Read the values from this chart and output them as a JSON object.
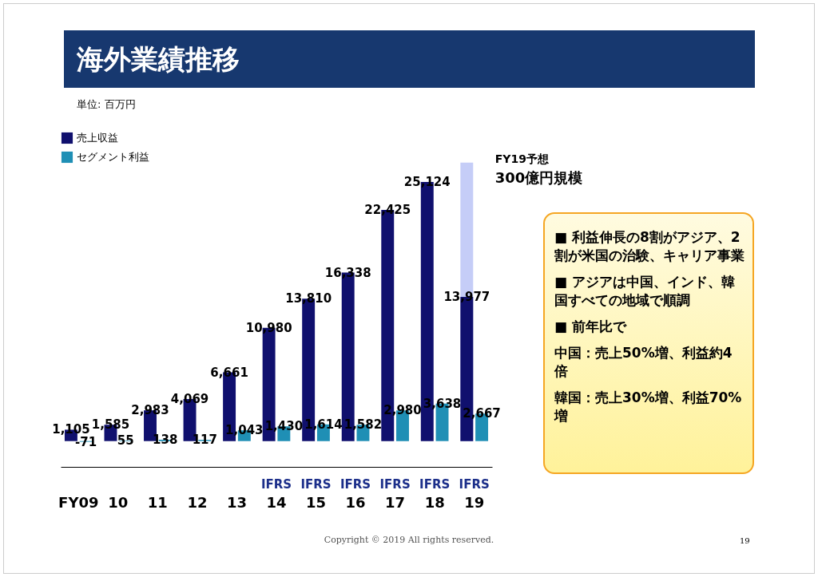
{
  "chart_data": {
    "type": "bar",
    "title": "海外業績推移",
    "subtitle": "単位: 百万円",
    "categories": [
      "FY09",
      "10",
      "11",
      "12",
      "13",
      "14",
      "15",
      "16",
      "17",
      "18",
      "19"
    ],
    "series": [
      {
        "color": "#c5cdf7",
        "values": [
          null,
          null,
          null,
          null,
          null,
          null,
          null,
          null,
          null,
          null,
          27000
        ],
        "value_labels": [
          null,
          null,
          null,
          null,
          null,
          null,
          null,
          null,
          null,
          null,
          null
        ]
      },
      {
        "name": "売上収益",
        "color": "#10106e",
        "values": [
          1105,
          1585,
          2983,
          4069,
          6661,
          10980,
          13810,
          16338,
          22425,
          25124,
          13977
        ],
        "value_labels": [
          "1,105",
          "1,585",
          "2,983",
          "4,069",
          "6,661",
          "10,980",
          "13,810",
          "16,338",
          "22,425",
          "25,124",
          "13,977"
        ]
      },
      {
        "name": "セグメント利益",
        "color": "#1f8fb5",
        "values": [
          -71,
          55,
          138,
          117,
          1043,
          1430,
          1614,
          1582,
          2980,
          3638,
          2667
        ],
        "value_labels": [
          "-71",
          "55",
          "138",
          "117",
          "1,043",
          "1,430",
          "1,614",
          "1,582",
          "2,980",
          "3,638",
          "2,667"
        ]
      }
    ],
    "ylim": [
      -2500,
      30000
    ],
    "tick_labels": "x",
    "legend": "top left",
    "grid": false,
    "annotations": [
      "IFRS",
      "IFRS",
      "IFRS",
      "IFRS",
      "IFRS",
      "IFRS",
      {
        "text": "FY19予想",
        "x": "19",
        "y": 27000
      },
      {
        "text": "300億円規模",
        "x": "19",
        "y": 27000
      },
      "■ 利益伸長の8割がアジア、2割が米国の治験、キャリア事業",
      "■ アジアは中国、インド、韓国すべての地域で順調",
      "■ 前年比で",
      "中国：売上50%増、利益約4倍",
      "韓国：売上30%増、利益70%増",
      "Copyright © 2019  All rights reserved.",
      "19"
    ]
  }
}
